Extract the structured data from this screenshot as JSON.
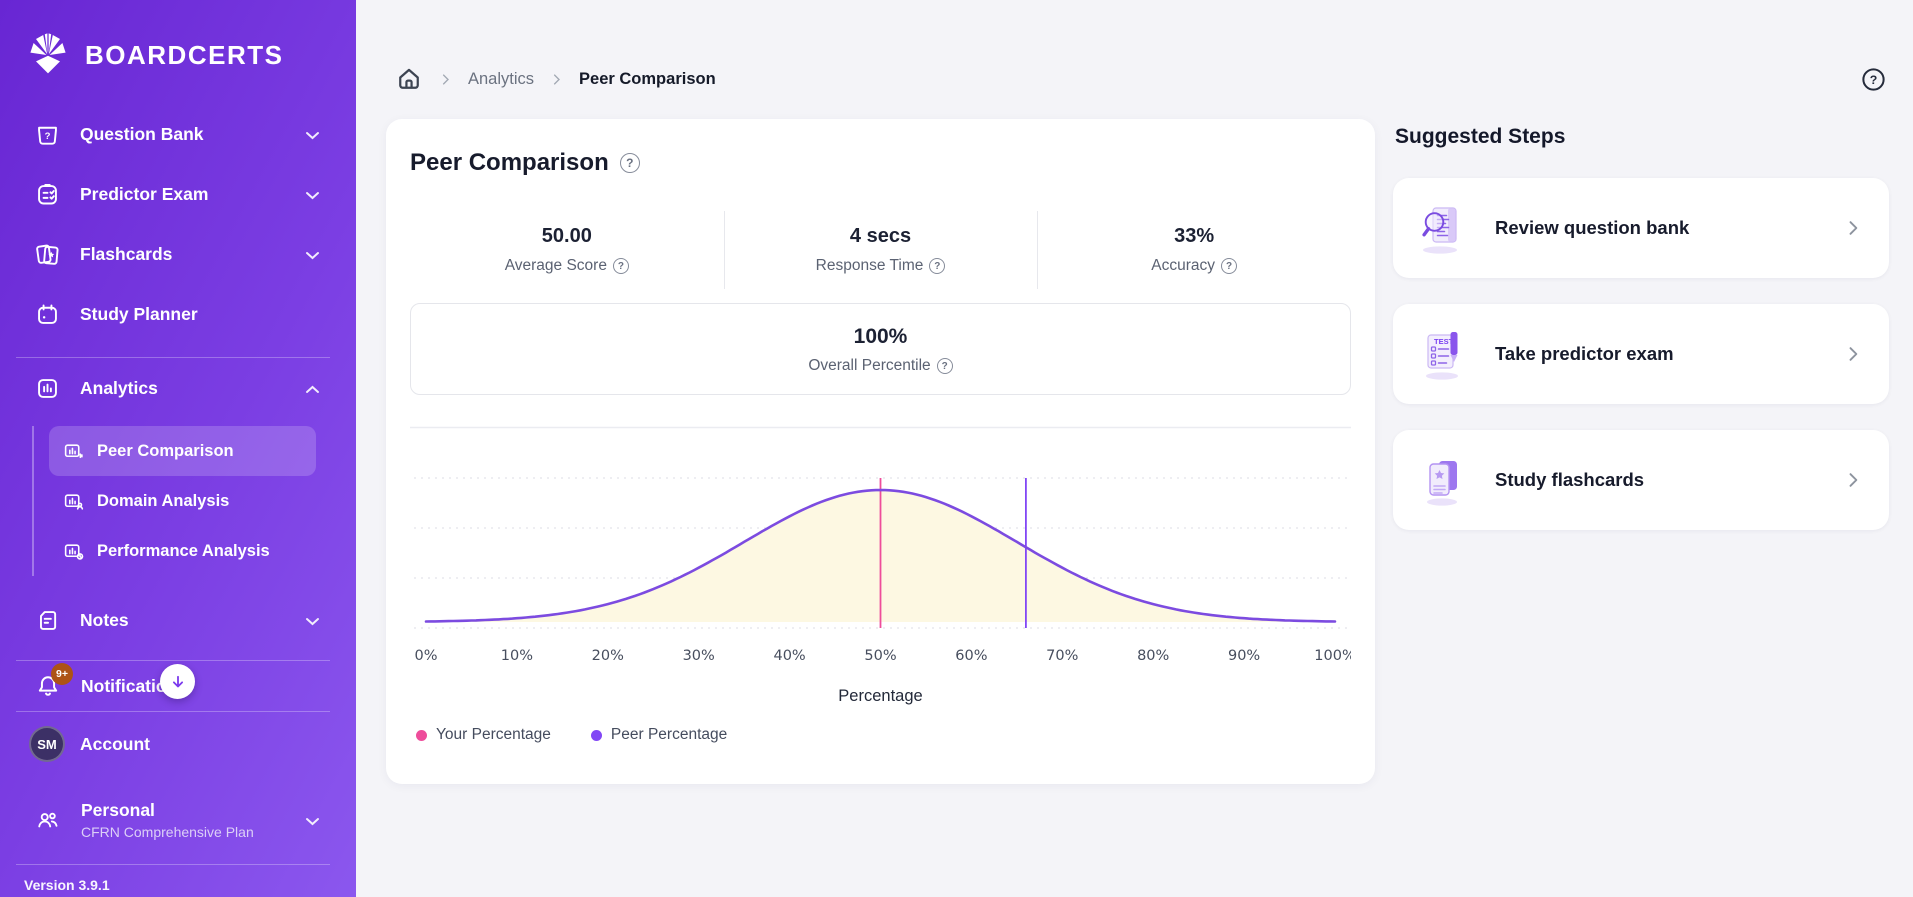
{
  "sidebar": {
    "brand": "BOARDCERTS",
    "items": [
      {
        "label": "Question Bank"
      },
      {
        "label": "Predictor Exam"
      },
      {
        "label": "Flashcards"
      },
      {
        "label": "Study Planner"
      },
      {
        "label": "Analytics"
      }
    ],
    "analytics_sub": [
      {
        "label": "Peer Comparison",
        "active": true
      },
      {
        "label": "Domain Analysis",
        "active": false
      },
      {
        "label": "Performance Analysis",
        "active": false
      }
    ],
    "notes": {
      "label": "Notes"
    },
    "notifications": {
      "label": "Notifications",
      "badge": "9+"
    },
    "account": {
      "label": "Account",
      "initials": "SM"
    },
    "plan": {
      "label": "Personal",
      "sublabel": "CFRN Comprehensive Plan"
    },
    "version": "Version 3.9.1"
  },
  "breadcrumb": {
    "level1": "Analytics",
    "level2": "Peer Comparison"
  },
  "main": {
    "title": "Peer Comparison",
    "stats": [
      {
        "value": "50.00",
        "label": "Average Score"
      },
      {
        "value": "4 secs",
        "label": "Response Time"
      },
      {
        "value": "33%",
        "label": "Accuracy"
      }
    ],
    "percentile": {
      "value": "100%",
      "label": "Overall Percentile"
    }
  },
  "chart_data": {
    "type": "area",
    "xlabel": "Percentage",
    "xlim": [
      0,
      100
    ],
    "x_ticks": [
      "0%",
      "10%",
      "20%",
      "30%",
      "40%",
      "50%",
      "60%",
      "70%",
      "80%",
      "90%",
      "100%"
    ],
    "curve": {
      "shape": "normal",
      "mean": 50,
      "stddev": 15,
      "stroke": "#7c4be0",
      "fill": "#fdf8e2"
    },
    "markers": [
      {
        "label": "Your Percentage",
        "x": 50,
        "color": "#ee4d9b"
      },
      {
        "label": "Peer Percentage",
        "x": 66,
        "color": "#8247f5"
      }
    ],
    "legend": [
      {
        "label": "Your Percentage",
        "color": "#ee4d9b"
      },
      {
        "label": "Peer Percentage",
        "color": "#8247f5"
      }
    ],
    "grid": "dashed-horizontal"
  },
  "suggested": {
    "title": "Suggested Steps",
    "cards": [
      {
        "label": "Review question bank"
      },
      {
        "label": "Take predictor exam"
      },
      {
        "label": "Study flashcards"
      }
    ]
  },
  "icons": {
    "help": "?"
  },
  "colors": {
    "accent": "#7c3aed",
    "your_color": "#ee4d9b",
    "peer_color": "#8247f5",
    "badge": "#ad5316"
  }
}
